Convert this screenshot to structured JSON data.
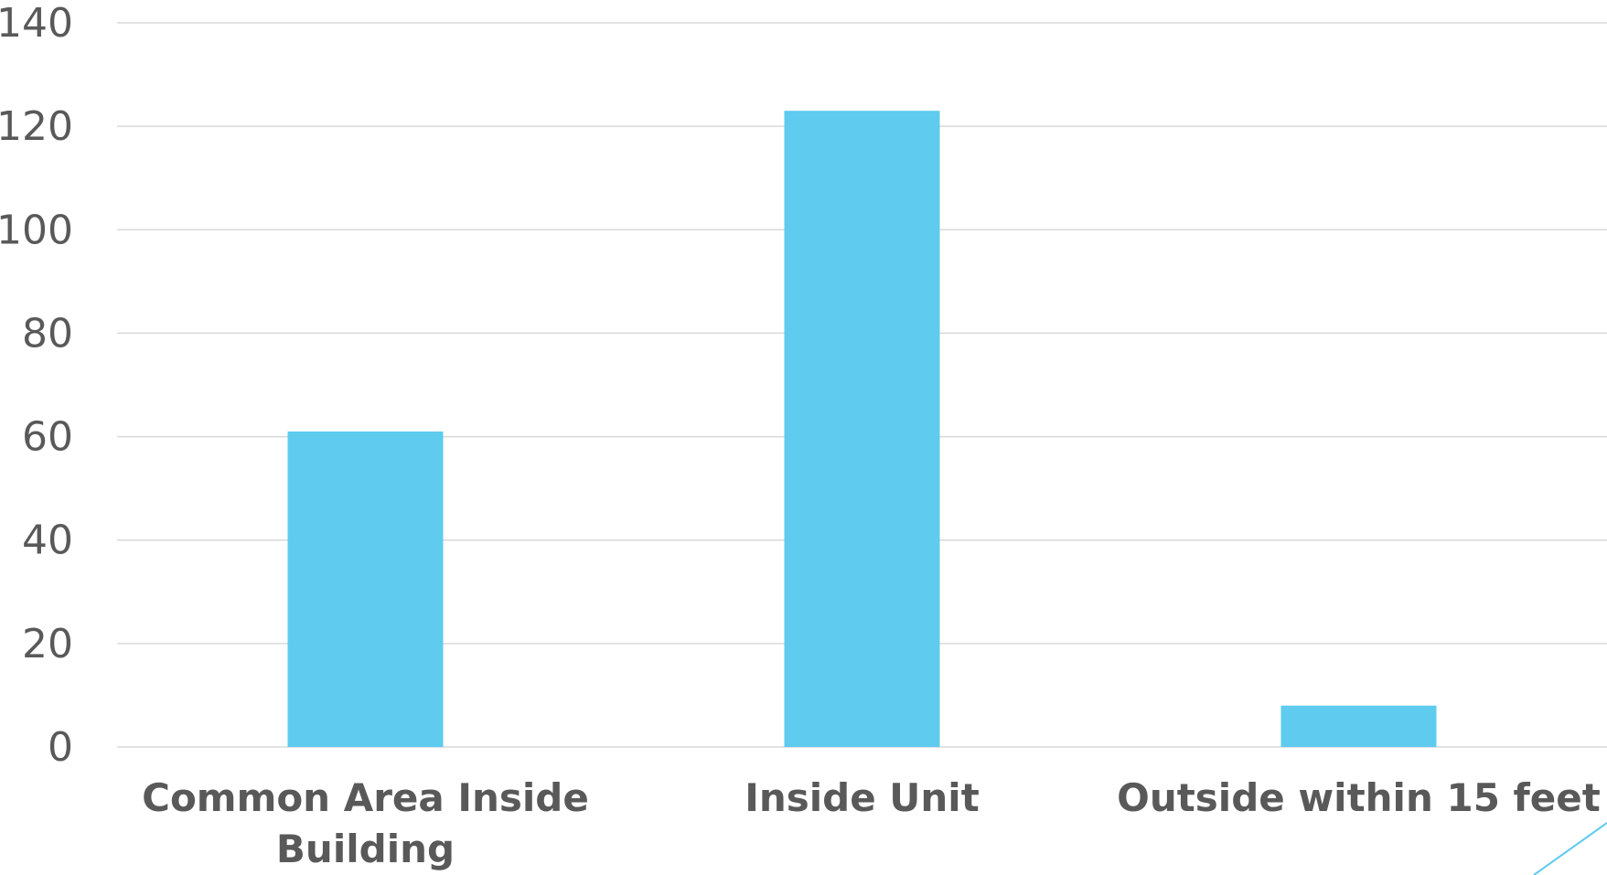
{
  "chart_data": {
    "type": "bar",
    "categories": [
      [
        "Common Area Inside",
        "Building"
      ],
      [
        "Inside Unit"
      ],
      [
        "Outside within 15 feet"
      ]
    ],
    "values": [
      61,
      123,
      8
    ],
    "ylim": [
      0,
      140
    ],
    "yticks": [
      0,
      20,
      40,
      60,
      80,
      100,
      120,
      140
    ],
    "grid": true,
    "colors": {
      "bar": "#5ECBEF",
      "grid": "#D9D9D9",
      "text": "#595959",
      "accent_line": "#5ECBEF"
    }
  }
}
